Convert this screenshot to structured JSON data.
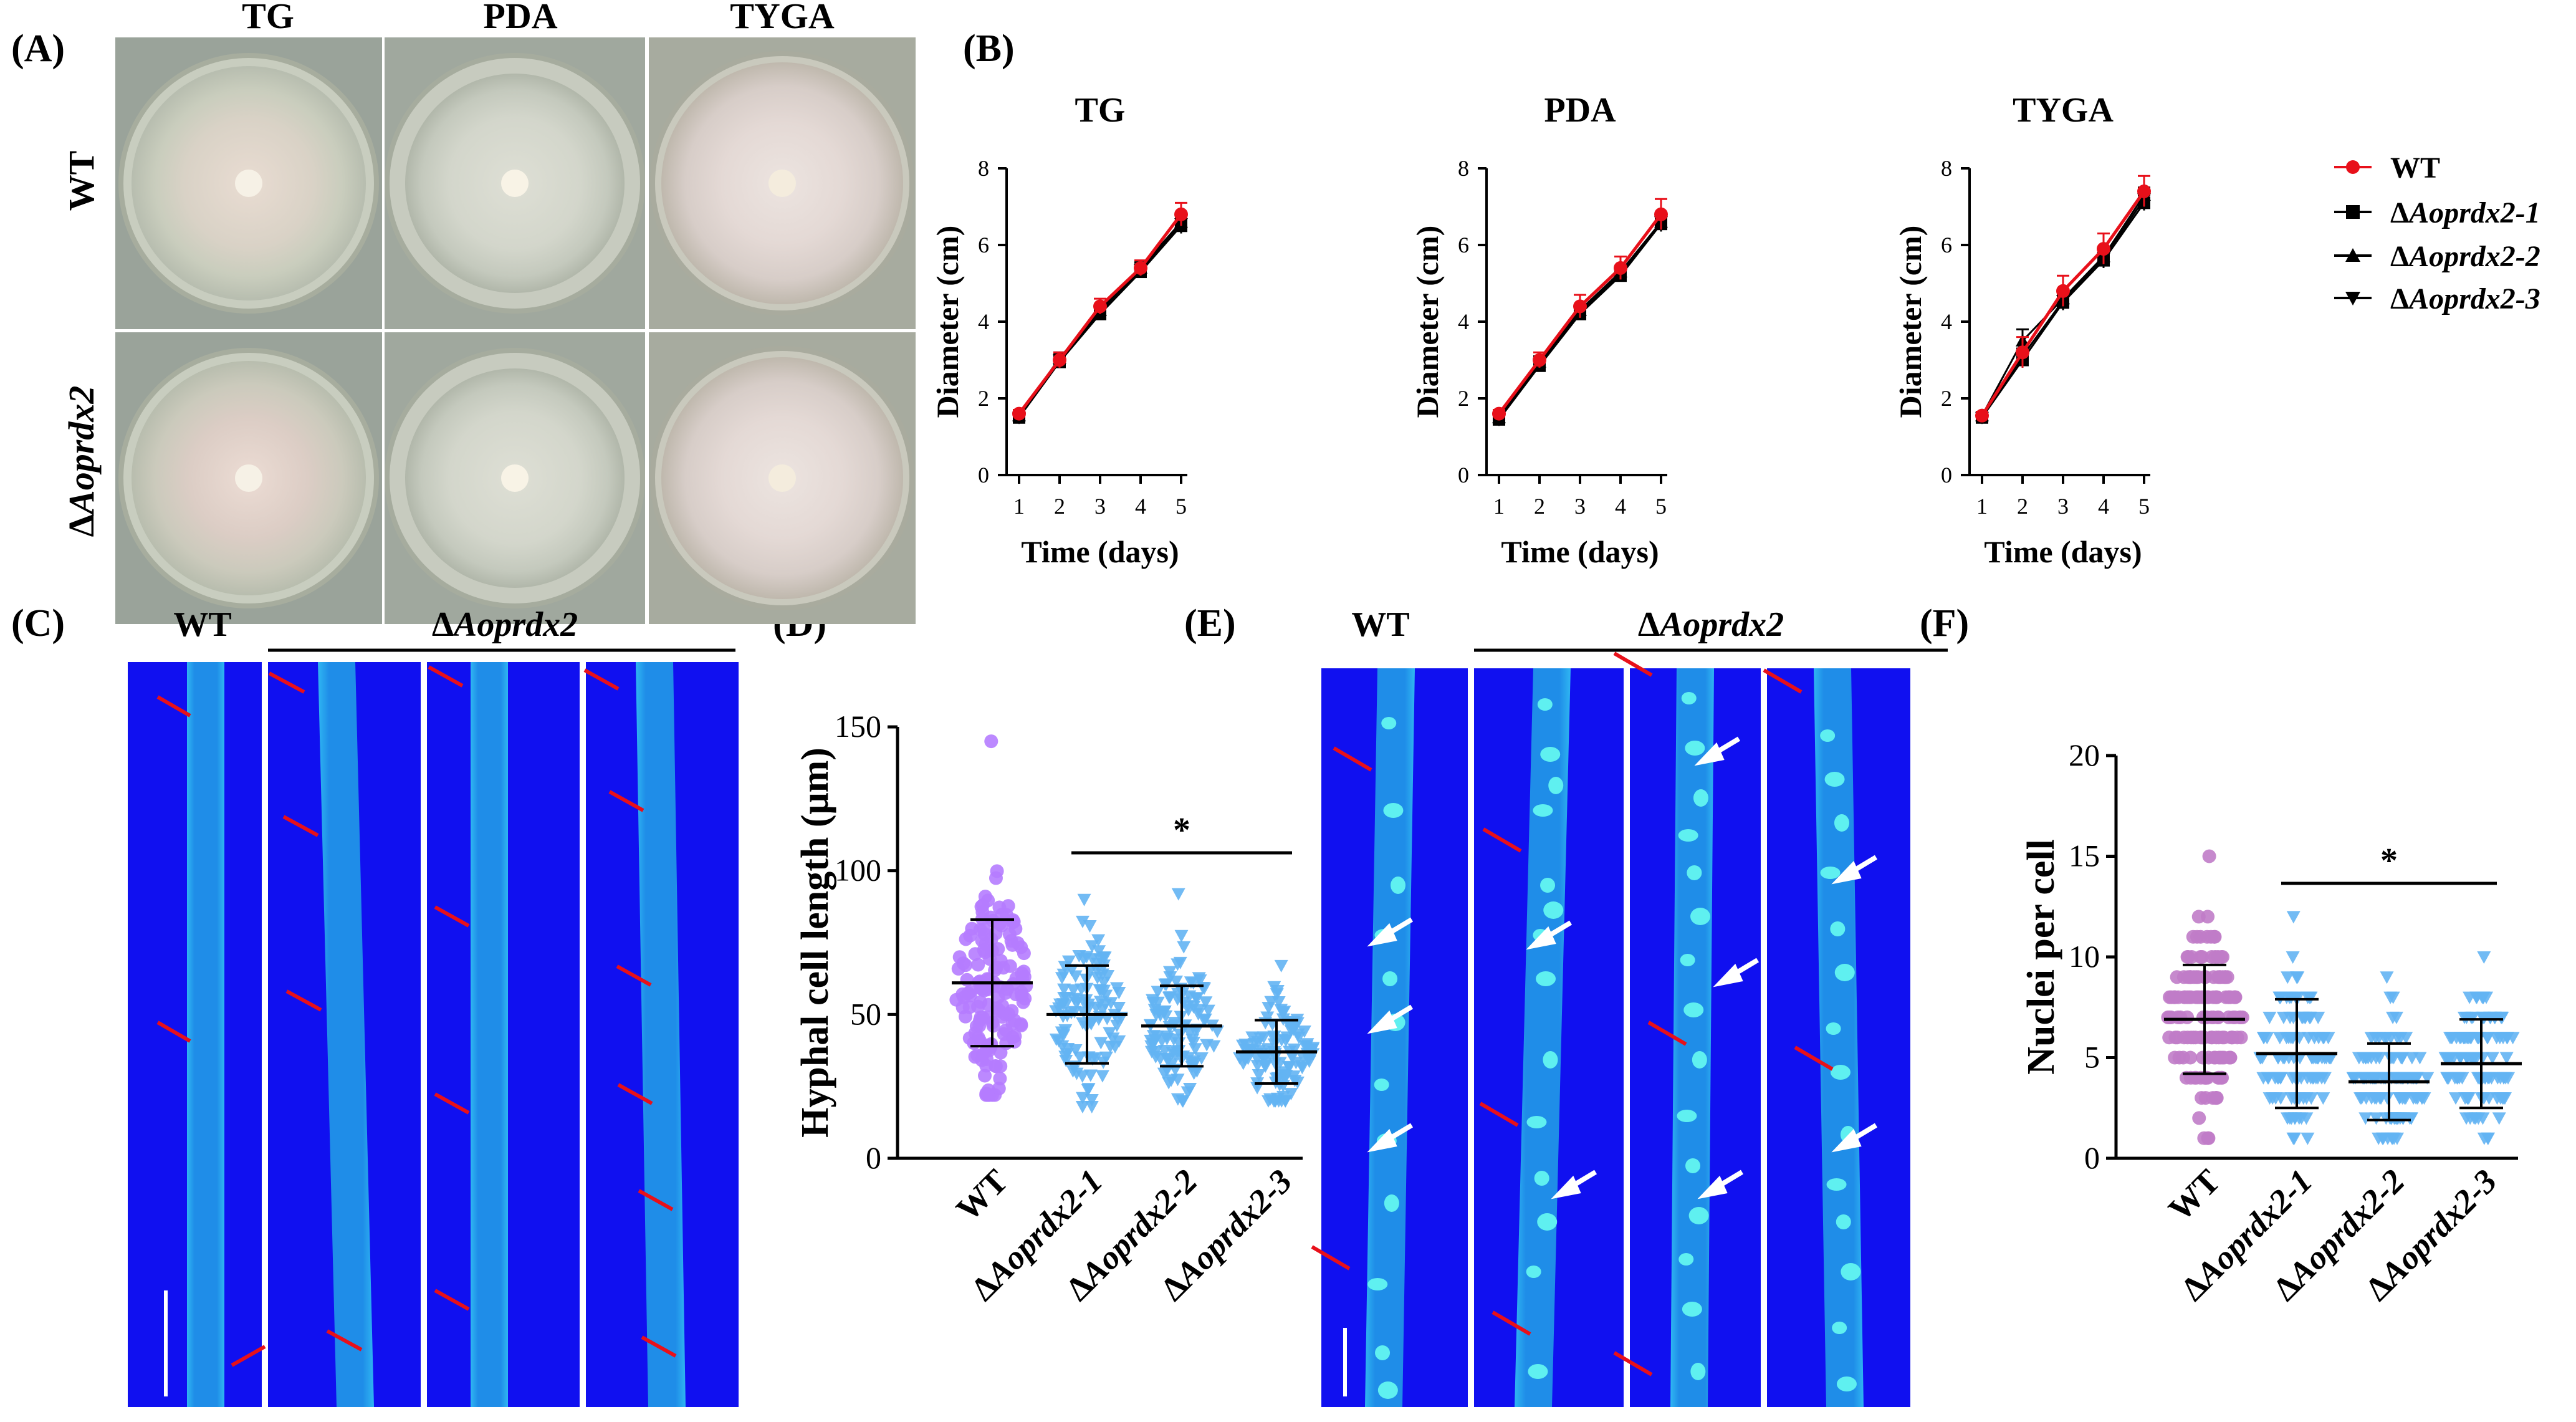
{
  "panel_labels": {
    "A": "(A)",
    "B": "(B)",
    "C": "(C)",
    "D": "(D)",
    "E": "(E)",
    "F": "(F)"
  },
  "panel_a": {
    "columns": [
      "TG",
      "PDA",
      "TYGA"
    ],
    "rows": [
      {
        "prefix": "",
        "name": "WT"
      },
      {
        "prefix": "Δ",
        "name": "Aoprdx2"
      }
    ]
  },
  "legend": [
    {
      "prefix": "",
      "name": "WT",
      "color": "#e8101a",
      "marker": "circle"
    },
    {
      "prefix": "Δ",
      "name": "Aoprdx2-1",
      "color": "#000000",
      "marker": "square"
    },
    {
      "prefix": "Δ",
      "name": "Aoprdx2-2",
      "color": "#000000",
      "marker": "triangle-up"
    },
    {
      "prefix": "Δ",
      "name": "Aoprdx2-3",
      "color": "#000000",
      "marker": "triangle-down"
    }
  ],
  "micro_labels": {
    "c_wt": "WT",
    "c_mut_prefix": "Δ",
    "c_mut_name": "Aoprdx2",
    "e_wt": "WT",
    "e_mut_prefix": "Δ",
    "e_mut_name": "Aoprdx2"
  },
  "colors": {
    "wt_red": "#e8101a",
    "mutant_black": "#000000",
    "wt_purple": "#b57cff",
    "mutant_blue": "#63b4f3",
    "nuclei_purple": "#c07cc8",
    "micro_bg": "#1010f0"
  },
  "chart_data": [
    {
      "type": "line",
      "title": "TG",
      "xlabel": "Time (days)",
      "ylabel": "Diameter (cm)",
      "x": [
        1,
        2,
        3,
        4,
        5
      ],
      "xticks": [
        "1",
        "2",
        "3",
        "4",
        "5"
      ],
      "ylim": [
        0,
        8
      ],
      "yticks": [
        "0",
        "2",
        "4",
        "6",
        "8"
      ],
      "series": [
        {
          "name": "WT",
          "values": [
            1.6,
            3.0,
            4.4,
            5.4,
            6.8
          ],
          "errors": [
            0.1,
            0.2,
            0.2,
            0.2,
            0.3
          ]
        },
        {
          "name": "ΔAoprdx2-1",
          "values": [
            1.5,
            2.95,
            4.2,
            5.3,
            6.5
          ],
          "errors": [
            0.1,
            0.15,
            0.15,
            0.15,
            0.2
          ]
        },
        {
          "name": "ΔAoprdx2-2",
          "values": [
            1.55,
            3.05,
            4.3,
            5.4,
            6.6
          ],
          "errors": [
            0.1,
            0.15,
            0.15,
            0.15,
            0.2
          ]
        },
        {
          "name": "ΔAoprdx2-3",
          "values": [
            1.5,
            3.0,
            4.25,
            5.35,
            6.55
          ],
          "errors": [
            0.1,
            0.15,
            0.15,
            0.15,
            0.2
          ]
        }
      ]
    },
    {
      "type": "line",
      "title": "PDA",
      "xlabel": "Time (days)",
      "ylabel": "Diameter (cm)",
      "x": [
        1,
        2,
        3,
        4,
        5
      ],
      "xticks": [
        "1",
        "2",
        "3",
        "4",
        "5"
      ],
      "ylim": [
        0,
        8
      ],
      "yticks": [
        "0",
        "2",
        "4",
        "6",
        "8"
      ],
      "series": [
        {
          "name": "WT",
          "values": [
            1.6,
            3.0,
            4.4,
            5.4,
            6.8
          ],
          "errors": [
            0.1,
            0.2,
            0.3,
            0.3,
            0.4
          ]
        },
        {
          "name": "ΔAoprdx2-1",
          "values": [
            1.45,
            2.85,
            4.2,
            5.2,
            6.55
          ],
          "errors": [
            0.1,
            0.15,
            0.15,
            0.15,
            0.2
          ]
        },
        {
          "name": "ΔAoprdx2-2",
          "values": [
            1.5,
            2.95,
            4.3,
            5.3,
            6.6
          ],
          "errors": [
            0.1,
            0.15,
            0.15,
            0.15,
            0.2
          ]
        },
        {
          "name": "ΔAoprdx2-3",
          "values": [
            1.45,
            2.9,
            4.25,
            5.25,
            6.6
          ],
          "errors": [
            0.1,
            0.15,
            0.15,
            0.15,
            0.2
          ]
        }
      ]
    },
    {
      "type": "line",
      "title": "TYGA",
      "xlabel": "Time (days)",
      "ylabel": "Diameter (cm)",
      "x": [
        1,
        2,
        3,
        4,
        5
      ],
      "xticks": [
        "1",
        "2",
        "3",
        "4",
        "5"
      ],
      "ylim": [
        0,
        8
      ],
      "yticks": [
        "0",
        "2",
        "4",
        "6",
        "8"
      ],
      "series": [
        {
          "name": "WT",
          "values": [
            1.55,
            3.2,
            4.8,
            5.9,
            7.4
          ],
          "errors": [
            0.1,
            0.4,
            0.4,
            0.4,
            0.4
          ]
        },
        {
          "name": "ΔAoprdx2-1",
          "values": [
            1.5,
            3.0,
            4.5,
            5.6,
            7.1
          ],
          "errors": [
            0.1,
            0.2,
            0.2,
            0.2,
            0.2
          ]
        },
        {
          "name": "ΔAoprdx2-2",
          "values": [
            1.55,
            3.5,
            4.6,
            5.7,
            7.3
          ],
          "errors": [
            0.1,
            0.3,
            0.2,
            0.2,
            0.2
          ]
        },
        {
          "name": "ΔAoprdx2-3",
          "values": [
            1.5,
            3.1,
            4.55,
            5.65,
            7.2
          ],
          "errors": [
            0.1,
            0.2,
            0.2,
            0.2,
            0.2
          ]
        }
      ]
    },
    {
      "type": "scatter",
      "title": "",
      "xlabel": "",
      "ylabel": "Hyphal cell length (μm)",
      "categories": [
        "WT",
        "ΔAoprdx2-1",
        "ΔAoprdx2-2",
        "ΔAoprdx2-3"
      ],
      "ylim": [
        0,
        150
      ],
      "yticks": [
        "0",
        "50",
        "100",
        "150"
      ],
      "means": [
        61,
        50,
        46,
        37
      ],
      "sd": [
        22,
        17,
        14,
        11
      ],
      "ranges": [
        [
          22,
          145
        ],
        [
          18,
          90
        ],
        [
          20,
          92
        ],
        [
          20,
          67
        ]
      ],
      "significance": "*"
    },
    {
      "type": "scatter",
      "title": "",
      "xlabel": "",
      "ylabel": "Nuclei per cell",
      "categories": [
        "WT",
        "ΔAoprdx2-1",
        "ΔAoprdx2-2",
        "ΔAoprdx2-3"
      ],
      "ylim": [
        0,
        20
      ],
      "yticks": [
        "0",
        "5",
        "10",
        "15",
        "20"
      ],
      "means": [
        6.9,
        5.2,
        3.8,
        4.7
      ],
      "sd": [
        2.7,
        2.7,
        1.9,
        2.2
      ],
      "ranges": [
        [
          1,
          15
        ],
        [
          1,
          12
        ],
        [
          1,
          9
        ],
        [
          1,
          10
        ]
      ],
      "significance": "*"
    }
  ]
}
